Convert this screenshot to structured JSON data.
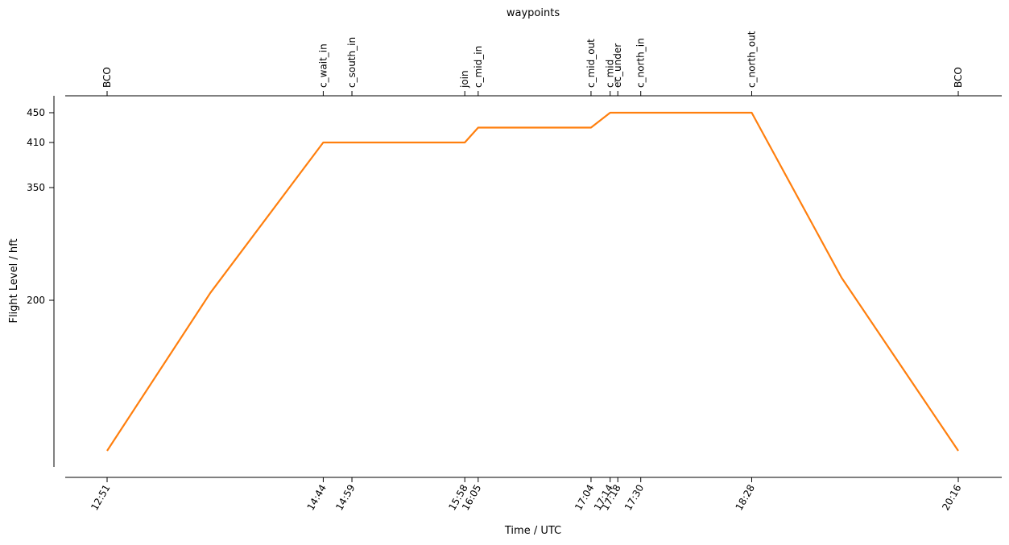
{
  "chart_data": {
    "type": "line",
    "title": "",
    "xlabel": "Time / UTC",
    "ylabel": "Flight Level / hft",
    "top_axis_label": "waypoints",
    "ylim": [
      0,
      450
    ],
    "yticks": [
      200,
      350,
      410,
      450
    ],
    "line_color": "#ff7f0e",
    "grid": false,
    "series": [
      {
        "x": [
          "12:51",
          "13:45",
          "14:44",
          "15:58",
          "16:05",
          "17:04",
          "17:14",
          "18:28",
          "19:15",
          "20:16"
        ],
        "y": [
          0,
          210,
          410,
          410,
          430,
          430,
          450,
          450,
          230,
          0
        ]
      }
    ],
    "xticks": [
      "12:51",
      "14:44",
      "14:59",
      "15:58",
      "16:05",
      "17:04",
      "17:14",
      "17:18",
      "17:30",
      "18:28",
      "20:16"
    ],
    "waypoints": [
      {
        "name": "BCO",
        "time": "12:51"
      },
      {
        "name": "c_wait_in",
        "time": "14:44"
      },
      {
        "name": "c_south_in",
        "time": "14:59"
      },
      {
        "name": "join",
        "time": "15:58"
      },
      {
        "name": "c_mid_in",
        "time": "16:05"
      },
      {
        "name": "c_mid_out",
        "time": "17:04"
      },
      {
        "name": "c_mid",
        "time": "17:14"
      },
      {
        "name": "ec_under",
        "time": "17:18"
      },
      {
        "name": "c_north_in",
        "time": "17:30"
      },
      {
        "name": "c_north_out",
        "time": "18:28"
      },
      {
        "name": "BCO",
        "time": "20:16"
      }
    ]
  }
}
